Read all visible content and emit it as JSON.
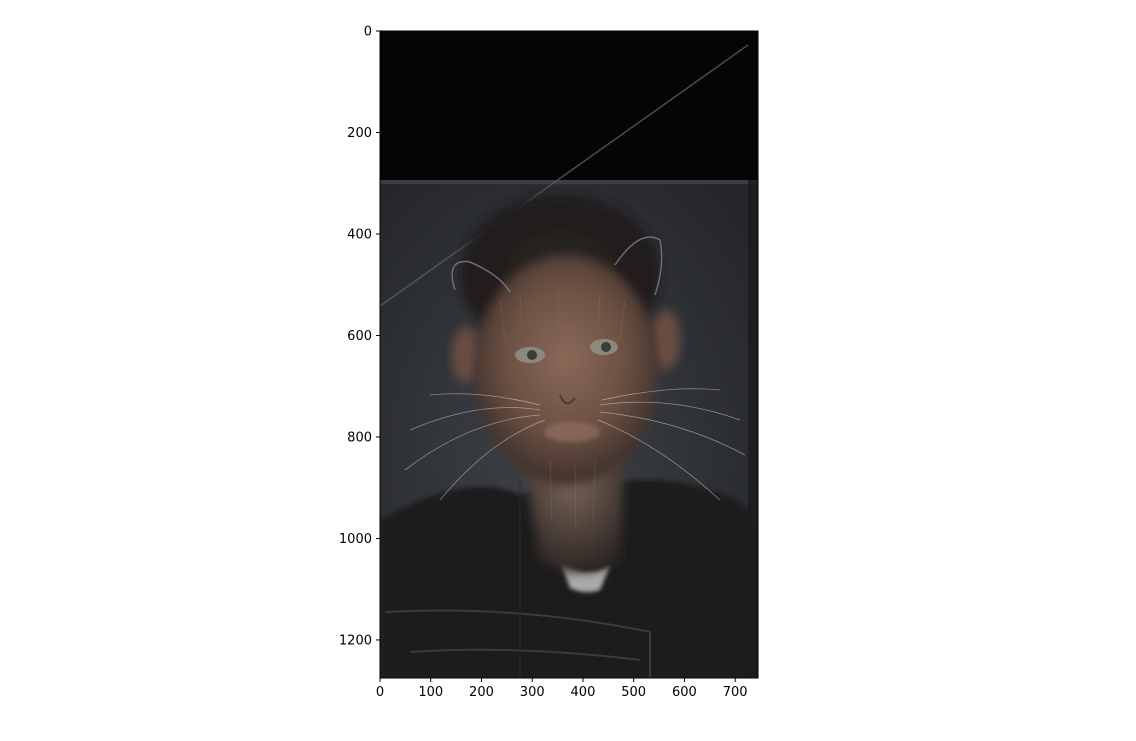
{
  "figure": {
    "description_free": true,
    "image_extent": {
      "x_range": [
        0,
        745
      ],
      "y_range": [
        1275,
        0
      ]
    },
    "x_ticks": [
      {
        "value": 0,
        "label": "0"
      },
      {
        "value": 100,
        "label": "100"
      },
      {
        "value": 200,
        "label": "200"
      },
      {
        "value": 300,
        "label": "300"
      },
      {
        "value": 400,
        "label": "400"
      },
      {
        "value": 500,
        "label": "500"
      },
      {
        "value": 600,
        "label": "600"
      },
      {
        "value": 700,
        "label": "700"
      }
    ],
    "y_ticks": [
      {
        "value": 0,
        "label": "0"
      },
      {
        "value": 200,
        "label": "200"
      },
      {
        "value": 400,
        "label": "400"
      },
      {
        "value": 600,
        "label": "600"
      },
      {
        "value": 800,
        "label": "800"
      },
      {
        "value": 1000,
        "label": "1000"
      },
      {
        "value": 1200,
        "label": "1200"
      }
    ]
  }
}
